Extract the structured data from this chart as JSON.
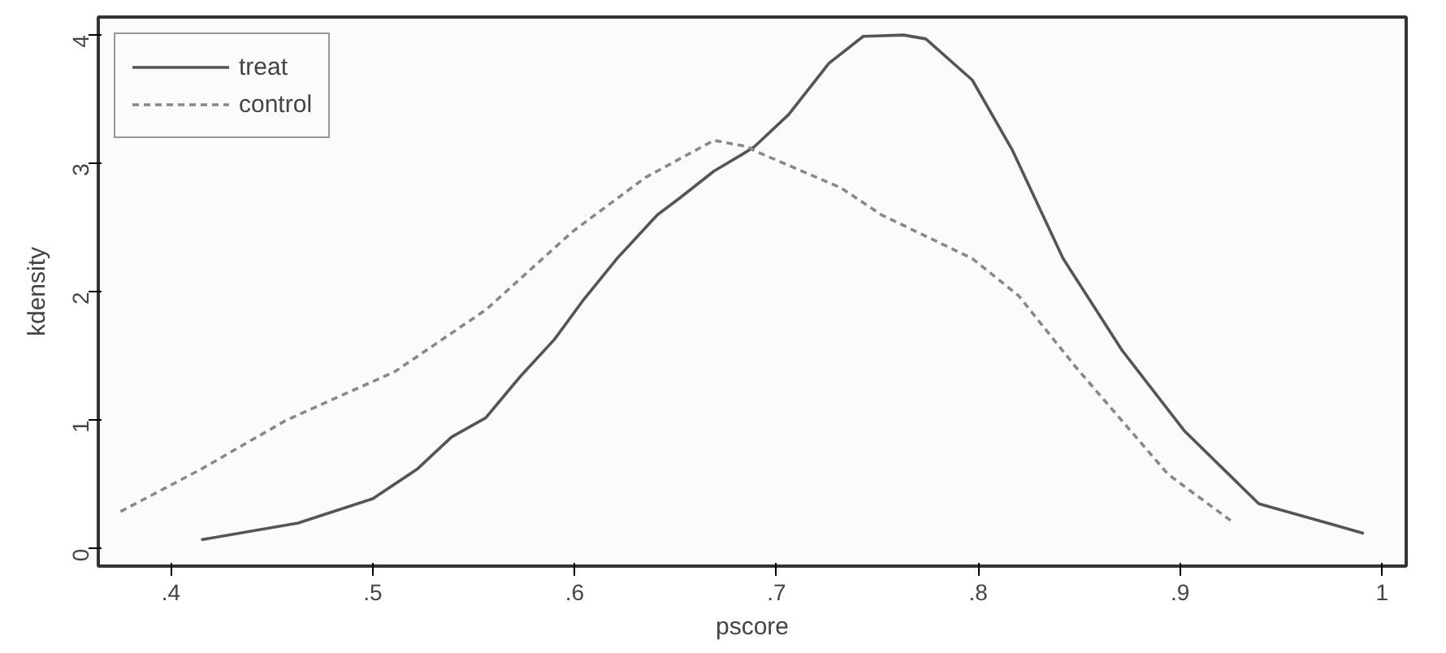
{
  "chart_data": {
    "type": "line",
    "xlabel": "pscore",
    "ylabel": "kdensity",
    "xlim": [
      0.364,
      1.012
    ],
    "ylim": [
      -0.135,
      4.14
    ],
    "xticks": [
      {
        "value": 0.4,
        "label": ".4"
      },
      {
        "value": 0.5,
        "label": ".5"
      },
      {
        "value": 0.6,
        "label": ".6"
      },
      {
        "value": 0.7,
        "label": ".7"
      },
      {
        "value": 0.8,
        "label": ".8"
      },
      {
        "value": 0.9,
        "label": ".9"
      },
      {
        "value": 1,
        "label": "1"
      }
    ],
    "yticks": [
      0,
      1,
      2,
      3,
      4
    ],
    "grid": false,
    "legend": "top left",
    "marker": "none",
    "series": [
      {
        "name": "treat",
        "color": "#555555",
        "line_style": "solid",
        "x": [
          0.415,
          0.463,
          0.5,
          0.522,
          0.539,
          0.556,
          0.573,
          0.59,
          0.604,
          0.621,
          0.641,
          0.652,
          0.669,
          0.684,
          0.689,
          0.706,
          0.726,
          0.743,
          0.763,
          0.774,
          0.797,
          0.817,
          0.842,
          0.871,
          0.902,
          0.939,
          0.973,
          0.991
        ],
        "values": [
          0.07,
          0.2,
          0.39,
          0.62,
          0.87,
          1.02,
          1.34,
          1.63,
          1.93,
          2.26,
          2.6,
          2.73,
          2.94,
          3.08,
          3.13,
          3.38,
          3.78,
          3.99,
          4.0,
          3.97,
          3.65,
          3.1,
          2.26,
          1.55,
          0.92,
          0.35,
          0.2,
          0.12
        ]
      },
      {
        "name": "control",
        "color": "#888888",
        "line_style": "dashed",
        "x": [
          0.375,
          0.415,
          0.457,
          0.511,
          0.556,
          0.599,
          0.635,
          0.669,
          0.686,
          0.689,
          0.732,
          0.752,
          0.797,
          0.82,
          0.848,
          0.871,
          0.894,
          0.925
        ],
        "values": [
          0.29,
          0.62,
          1.0,
          1.38,
          1.86,
          2.47,
          2.89,
          3.18,
          3.13,
          3.1,
          2.81,
          2.6,
          2.26,
          1.97,
          1.42,
          1.0,
          0.58,
          0.22
        ]
      }
    ]
  }
}
